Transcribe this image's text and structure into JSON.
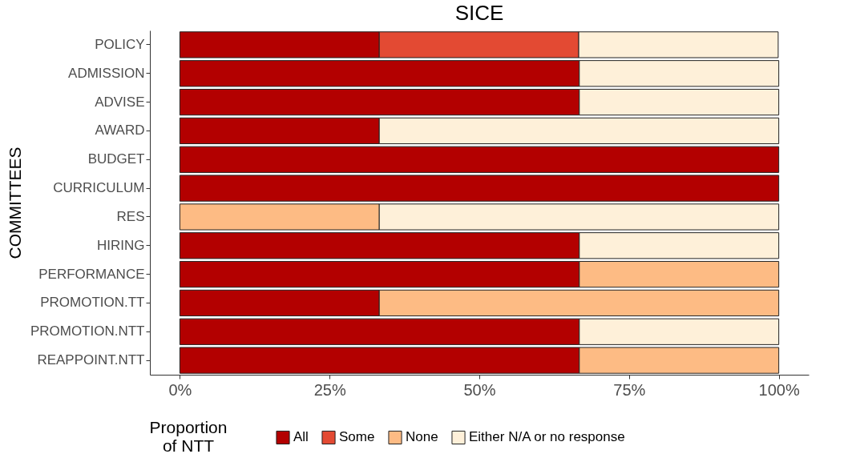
{
  "chart_data": {
    "type": "bar",
    "title": "SICE",
    "ylabel": "COMMITTEES",
    "legend_title": "Proportion\nof NTT",
    "orientation": "horizontal",
    "stacked": true,
    "legend": "bottom",
    "grid": false,
    "categories": [
      "POLICY",
      "ADMISSION",
      "ADVISE",
      "AWARD",
      "BUDGET",
      "CURRICULUM",
      "RES",
      "HIRING",
      "PERFORMANCE",
      "PROMOTION.TT",
      "PROMOTION.NTT",
      "REAPPOINT.NTT"
    ],
    "xlim": [
      -5,
      105
    ],
    "xticks": [
      {
        "value": 0,
        "label": "0%"
      },
      {
        "value": 25,
        "label": "25%"
      },
      {
        "value": 50,
        "label": "50%"
      },
      {
        "value": 75,
        "label": "75%"
      },
      {
        "value": 100,
        "label": "100%"
      }
    ],
    "series": [
      {
        "name": "All",
        "color": "#b30000",
        "values": [
          33.3,
          66.7,
          66.7,
          33.3,
          100,
          100,
          null,
          66.7,
          66.7,
          33.3,
          66.7,
          66.7
        ]
      },
      {
        "name": "Some",
        "color": "#e34a33",
        "values": [
          33.3,
          null,
          null,
          null,
          null,
          null,
          null,
          null,
          null,
          null,
          null,
          null
        ]
      },
      {
        "name": "None",
        "color": "#fdbb84",
        "values": [
          null,
          null,
          null,
          null,
          null,
          null,
          33.3,
          null,
          33.3,
          66.7,
          null,
          33.3
        ]
      },
      {
        "name": "Either N/A or no response",
        "color": "#fef0d9",
        "values": [
          33.3,
          33.3,
          33.3,
          66.7,
          null,
          null,
          66.7,
          33.3,
          null,
          null,
          33.3,
          null
        ]
      }
    ]
  }
}
